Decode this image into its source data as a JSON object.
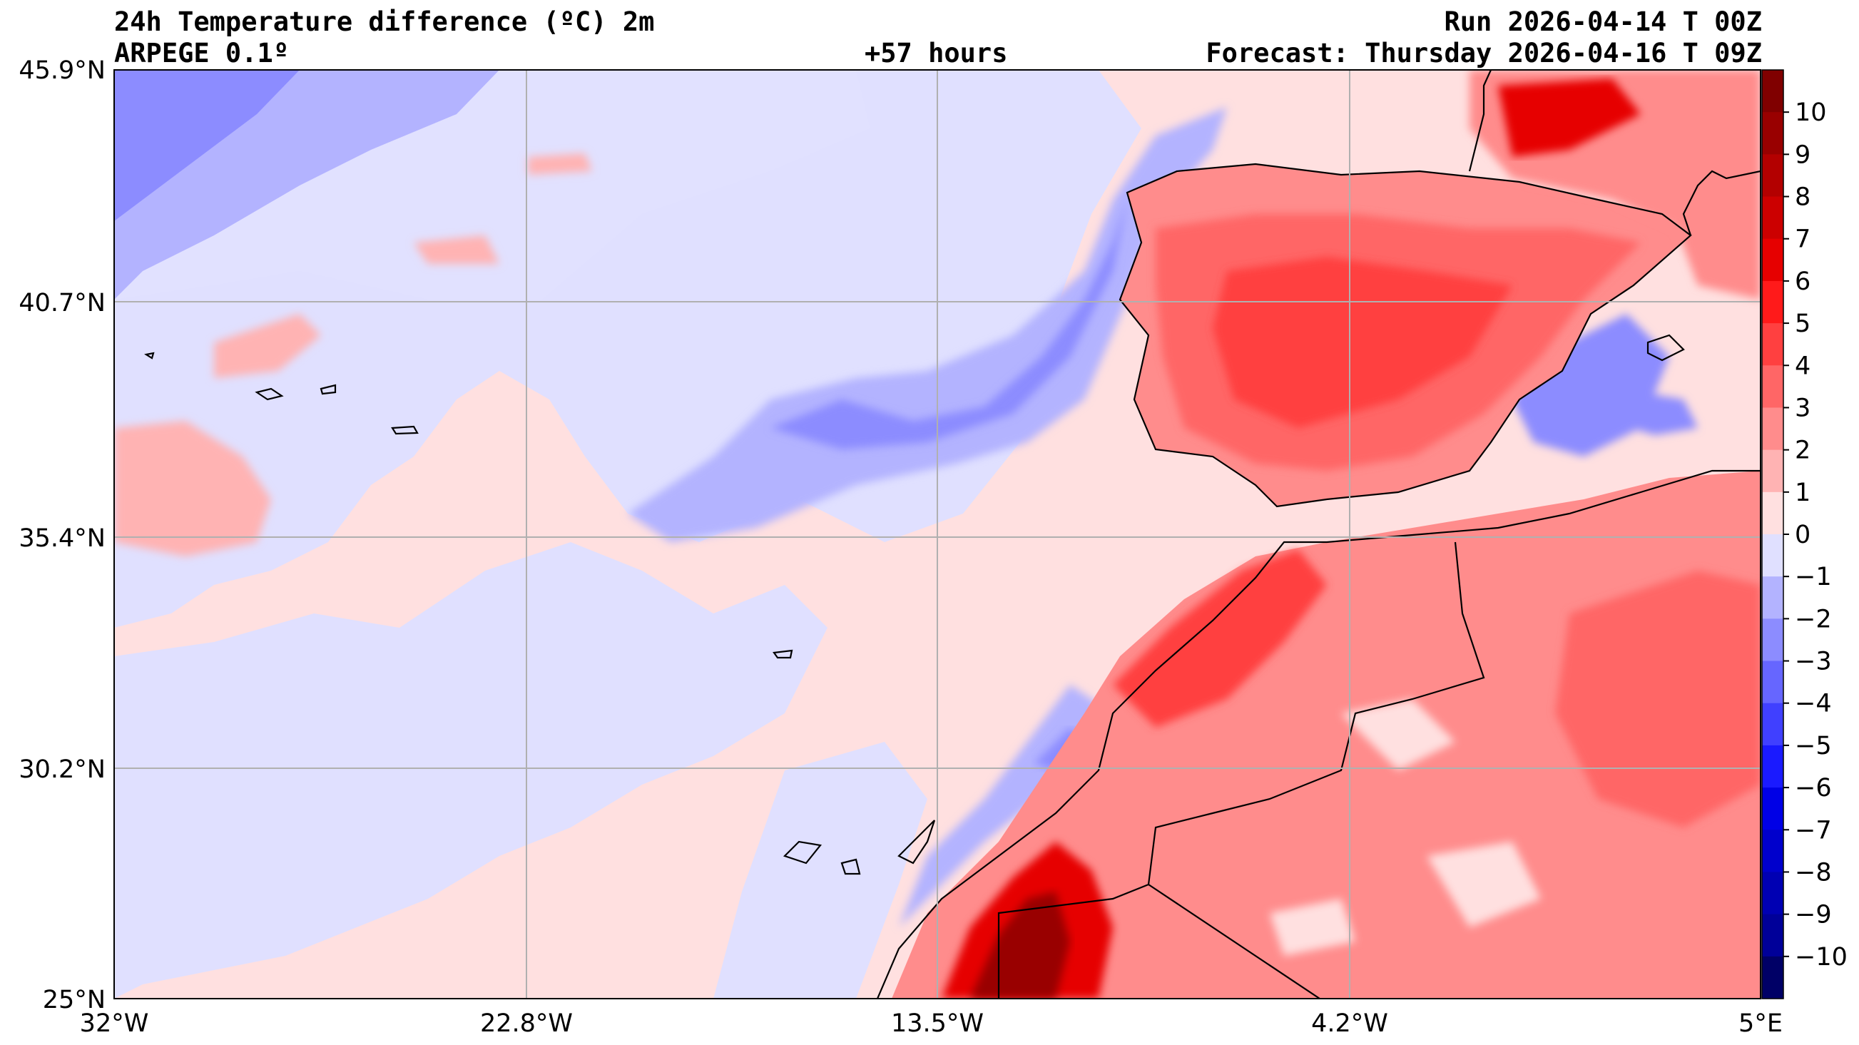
{
  "header": {
    "title": "24h Temperature difference (ºC) 2m",
    "model": "ARPEGE 0.1º",
    "lead": "+57 hours",
    "run": "Run 2026-04-14 T 00Z",
    "forecast": "Forecast: Thursday 2026-04-16 T 09Z"
  },
  "axes": {
    "lat_labels": [
      "45.9°N",
      "40.7°N",
      "35.4°N",
      "30.2°N",
      "25°N"
    ],
    "lon_labels": [
      "32°W",
      "22.8°W",
      "13.5°W",
      "4.2°W",
      "5°E"
    ]
  },
  "colorbar": {
    "labels": [
      "10",
      "9",
      "8",
      "7",
      "6",
      "5",
      "4",
      "3",
      "2",
      "1",
      "0",
      "−1",
      "−2",
      "−3",
      "−4",
      "−5",
      "−6",
      "−7",
      "−8",
      "−9",
      "−10"
    ],
    "colors": [
      "#800000",
      "#990000",
      "#b30000",
      "#cc0000",
      "#e60000",
      "#ff1a1a",
      "#ff4040",
      "#ff6666",
      "#ff8c8c",
      "#ffb3b3",
      "#ffe0e0",
      "#e0e0ff",
      "#b3b3ff",
      "#8c8cff",
      "#6666ff",
      "#4040ff",
      "#1a1aff",
      "#0000e6",
      "#0000cc",
      "#0000b3",
      "#000099",
      "#000066"
    ]
  },
  "map_colors": {
    "ocean_warm": "#ffe0e0",
    "ocean_cool": "#e0e0ff",
    "land": "#ff8c8c",
    "hot": "#e60000",
    "cold": "#6666ff"
  }
}
